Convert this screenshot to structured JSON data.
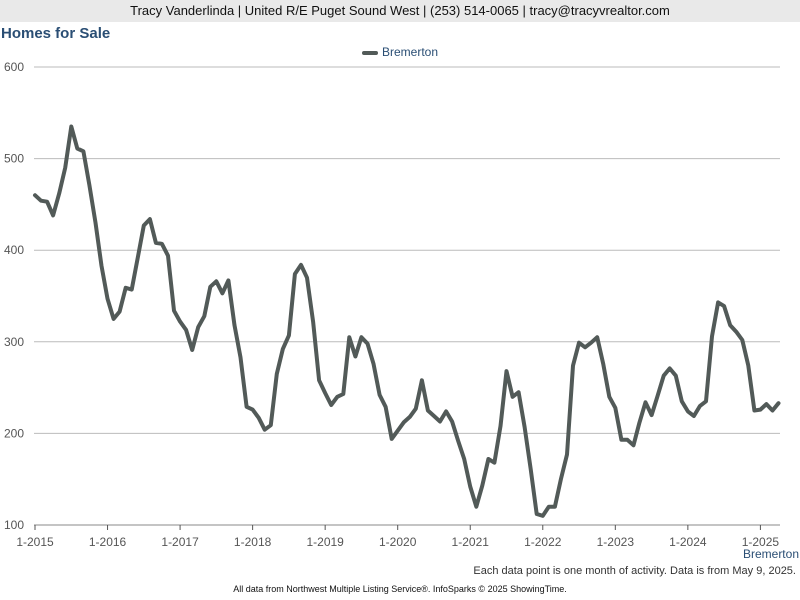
{
  "header": {
    "agent_line": "Tracy Vanderlinda | United R/E Puget Sound West | (253) 514-0065 | tracy@tracyvrealtor.com"
  },
  "colors": {
    "line": "#525a58",
    "title": "#2a4e74",
    "grid": "#bbbbbb",
    "topbar": "#e9e9e9"
  },
  "chart_data": {
    "type": "line",
    "title": "Homes for Sale",
    "legend_position": "top-center",
    "grid": true,
    "ylim": [
      100,
      600
    ],
    "yticks": [
      100,
      200,
      300,
      400,
      500,
      600
    ],
    "xticks": [
      "1-2015",
      "1-2016",
      "1-2017",
      "1-2018",
      "1-2019",
      "1-2020",
      "1-2021",
      "1-2022",
      "1-2023",
      "1-2024",
      "1-2025"
    ],
    "x_start": "2015-01",
    "series": [
      {
        "name": "Bremerton",
        "values": [
          460,
          454,
          453,
          438,
          462,
          490,
          535,
          511,
          508,
          471,
          430,
          383,
          347,
          325,
          333,
          359,
          357,
          392,
          427,
          434,
          408,
          407,
          394,
          334,
          322,
          313,
          291,
          316,
          328,
          360,
          366,
          353,
          367,
          318,
          283,
          229,
          226,
          217,
          204,
          209,
          265,
          292,
          307,
          374,
          384,
          370,
          322,
          258,
          244,
          231,
          240,
          243,
          305,
          284,
          305,
          298,
          276,
          242,
          229,
          194,
          203,
          212,
          218,
          227,
          258,
          225,
          219,
          213,
          224,
          213,
          192,
          172,
          142,
          120,
          143,
          172,
          168,
          208,
          268,
          240,
          245,
          207,
          161,
          112,
          110,
          120,
          120,
          150,
          177,
          274,
          299,
          294,
          299,
          305,
          276,
          240,
          228,
          193,
          193,
          187,
          212,
          234,
          220,
          241,
          263,
          271,
          263,
          235,
          224,
          219,
          230,
          235,
          306,
          343,
          339,
          318,
          311,
          302,
          274,
          225,
          226,
          232,
          225,
          233
        ]
      }
    ]
  },
  "corner_label": "Bremerton",
  "note": "Each data point is one month of activity. Data is from May 9, 2025.",
  "footer": "All data from Northwest Multiple Listing Service®. InfoSparks © 2025 ShowingTime."
}
